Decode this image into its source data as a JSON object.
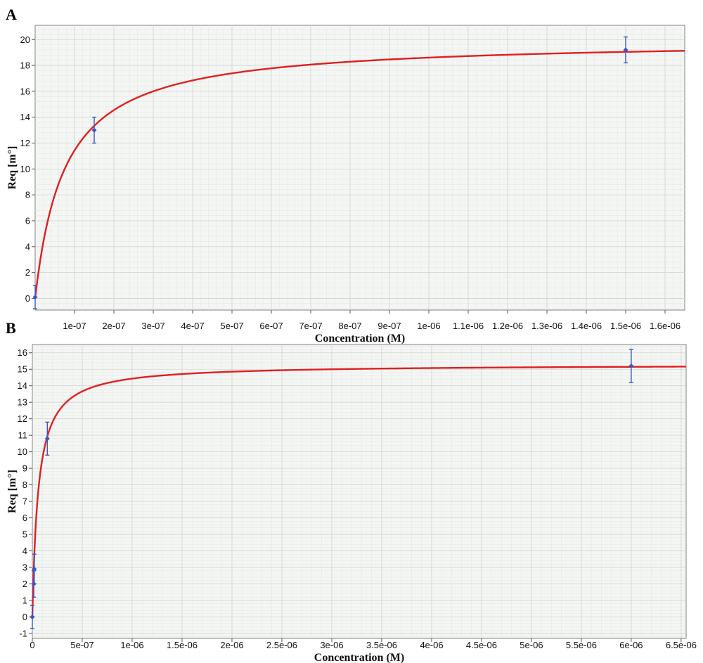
{
  "colors": {
    "curve": "#e02020",
    "points": "#3a56c9"
  },
  "chart_data": [
    {
      "type": "scatter",
      "panel_label": "A",
      "title": "",
      "xlabel": "Concentration (M)",
      "ylabel": "Req [m°]",
      "xlim": [
        0,
        1.65e-06
      ],
      "ylim": [
        -0.9,
        21.1
      ],
      "x_ticks": [
        1e-07,
        2e-07,
        3e-07,
        4e-07,
        5e-07,
        6e-07,
        7e-07,
        8e-07,
        9e-07,
        1e-06,
        1.1e-06,
        1.2e-06,
        1.3e-06,
        1.4e-06,
        1.5e-06,
        1.6e-06
      ],
      "x_tick_labels": [
        "1e-07",
        "2e-07",
        "3e-07",
        "4e-07",
        "5e-07",
        "6e-07",
        "7e-07",
        "8e-07",
        "9e-07",
        "1e-06",
        "1.1e-06",
        "1.2e-06",
        "1.3e-06",
        "1.4e-06",
        "1.5e-06",
        "1.6e-06"
      ],
      "y_ticks": [
        0,
        2,
        4,
        6,
        8,
        10,
        12,
        14,
        16,
        18,
        20
      ],
      "y_tick_labels": [
        "0",
        "2",
        "4",
        "6",
        "8",
        "10",
        "12",
        "14",
        "16",
        "18",
        "20"
      ],
      "grid": true,
      "points": [
        {
          "x": 0,
          "y": 0.1,
          "err": 0.9
        },
        {
          "x": 1.5e-07,
          "y": 13.0,
          "err": 1.0
        },
        {
          "x": 1.5e-06,
          "y": 19.2,
          "err": 1.0
        }
      ],
      "fit": {
        "model": "Req = Rmax*C/(KD+C)",
        "Rmax": 20.0,
        "KD": 7.5e-08
      }
    },
    {
      "type": "scatter",
      "panel_label": "B",
      "title": "",
      "xlabel": "Concentration (M)",
      "ylabel": "Req [m°]",
      "xlim": [
        0,
        6.55e-06
      ],
      "ylim": [
        -1.3,
        16.5
      ],
      "x_ticks": [
        0,
        5e-07,
        1e-06,
        1.5e-06,
        2e-06,
        2.5e-06,
        3e-06,
        3.5e-06,
        4e-06,
        4.5e-06,
        5e-06,
        5.5e-06,
        6e-06,
        6.5e-06
      ],
      "x_tick_labels": [
        "0",
        "5e-07",
        "1e-06",
        "1.5e-06",
        "2e-06",
        "2.5e-06",
        "3e-06",
        "3.5e-06",
        "4e-06",
        "4.5e-06",
        "5e-06",
        "5.5e-06",
        "6e-06",
        "6.5e-06"
      ],
      "y_ticks": [
        -1,
        0,
        1,
        2,
        3,
        4,
        5,
        6,
        7,
        8,
        9,
        10,
        11,
        12,
        13,
        14,
        15,
        16
      ],
      "y_tick_labels": [
        "-1",
        "0",
        "1",
        "2",
        "3",
        "4",
        "5",
        "6",
        "7",
        "8",
        "9",
        "10",
        "11",
        "12",
        "13",
        "14",
        "15",
        "16"
      ],
      "grid": true,
      "points": [
        {
          "x": 0,
          "y": 0.0,
          "err": 0.7
        },
        {
          "x": 1.5e-08,
          "y": 2.0,
          "err": 0.8
        },
        {
          "x": 2e-08,
          "y": 2.9,
          "err": 0.9
        },
        {
          "x": 1.5e-07,
          "y": 10.8,
          "err": 1.0
        },
        {
          "x": 6e-06,
          "y": 15.2,
          "err": 1.0
        }
      ],
      "fit": {
        "model": "Req = Rmax*C/(KD+C)",
        "Rmax": 15.3,
        "KD": 6e-08
      }
    }
  ]
}
